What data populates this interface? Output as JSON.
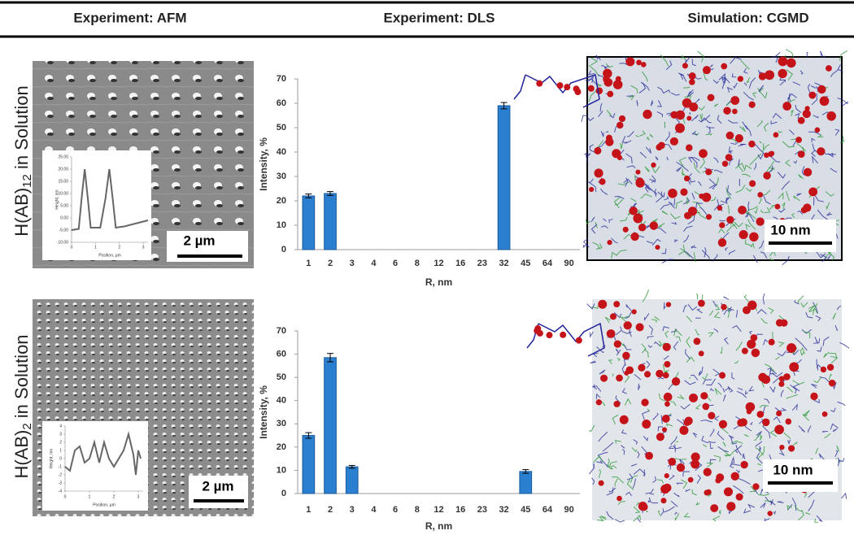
{
  "header": {
    "columns": [
      "Experiment: AFM",
      "Experiment: DLS",
      "Simulation: CGMD"
    ]
  },
  "rows": [
    {
      "label": [
        "H(AB)",
        "12",
        " in Solution"
      ],
      "afm_scale": "2 µm",
      "cgmd_scale": "10 nm"
    },
    {
      "label": [
        "H(AB)",
        "2",
        " in Solution"
      ],
      "afm_scale": "2 µm",
      "cgmd_scale": "10 nm"
    }
  ],
  "chart_data": [
    {
      "type": "bar",
      "x_label": "R, nm",
      "y_label": "Intensity, %",
      "color": "#2b7fd0",
      "categories": [
        "1",
        "2",
        "3",
        "4",
        "6",
        "8",
        "12",
        "16",
        "23",
        "32",
        "45",
        "64",
        "90"
      ],
      "values": [
        22,
        23,
        0,
        0,
        0,
        0,
        0,
        0,
        0,
        59,
        0,
        0,
        0
      ],
      "errors": [
        0.8,
        0.8,
        null,
        null,
        null,
        null,
        null,
        null,
        null,
        1.3,
        null,
        null,
        null
      ],
      "ylim": [
        0,
        70
      ],
      "yticks": [
        0,
        10,
        20,
        30,
        40,
        50,
        60,
        70
      ]
    },
    {
      "type": "bar",
      "x_label": "R, nm",
      "y_label": "Intensity, %",
      "color": "#2b7fd0",
      "categories": [
        "1",
        "2",
        "3",
        "4",
        "6",
        "8",
        "12",
        "16",
        "23",
        "32",
        "45",
        "64",
        "90"
      ],
      "values": [
        25,
        58.5,
        11.5,
        0,
        0,
        0,
        0,
        0,
        0,
        0,
        9.5,
        0,
        0
      ],
      "errors": [
        1.2,
        1.8,
        0.6,
        null,
        null,
        null,
        null,
        null,
        null,
        null,
        0.8,
        null,
        null
      ],
      "ylim": [
        0,
        70
      ],
      "yticks": [
        0,
        10,
        20,
        30,
        40,
        50,
        60,
        70
      ]
    },
    {
      "type": "line",
      "x_label": "Position, µm",
      "y_label": "Height, nm",
      "color": "#666666",
      "x": [
        0,
        0.3,
        0.42,
        0.55,
        0.68,
        0.8,
        1.2,
        1.42,
        1.58,
        1.72,
        1.85,
        2.2,
        3.2
      ],
      "values": [
        -5,
        -4.5,
        8,
        20,
        8,
        -4,
        -4,
        8,
        20,
        8,
        -4,
        -3.5,
        -1
      ],
      "xlim": [
        0,
        3.2
      ],
      "xticks": [
        0,
        1,
        2,
        3
      ],
      "ylim": [
        -10,
        25
      ],
      "yticks": [
        {
          "value": -10,
          "label": "-10.00"
        },
        {
          "value": -5,
          "label": "-5.00"
        },
        {
          "value": 0,
          "label": "0.00"
        },
        {
          "value": 5,
          "label": "5.00"
        },
        {
          "value": 10,
          "label": "10.00"
        },
        {
          "value": 15,
          "label": "15.00"
        },
        {
          "value": 20,
          "label": "20.00"
        },
        {
          "value": 25,
          "label": "25.00"
        }
      ]
    },
    {
      "type": "line",
      "x_label": "Position, µm",
      "y_label": "Height, nm",
      "color": "#666666",
      "x": [
        0,
        0.2,
        0.4,
        0.6,
        0.8,
        1.0,
        1.2,
        1.4,
        1.6,
        1.8,
        2.0,
        2.2,
        2.4,
        2.6,
        2.8,
        2.9,
        3.0,
        3.1
      ],
      "values": [
        -1,
        -1.5,
        1,
        1.5,
        -0.5,
        0,
        2,
        -0.5,
        2,
        0,
        -1,
        0,
        1,
        3,
        0.5,
        -2,
        1,
        0
      ],
      "xlim": [
        0,
        3.2
      ],
      "xticks": [
        0,
        1,
        2,
        3
      ],
      "ylim": [
        -4,
        4
      ],
      "yticks": [
        -4,
        -3,
        -2,
        -1,
        0,
        1,
        2,
        3,
        4
      ]
    }
  ]
}
